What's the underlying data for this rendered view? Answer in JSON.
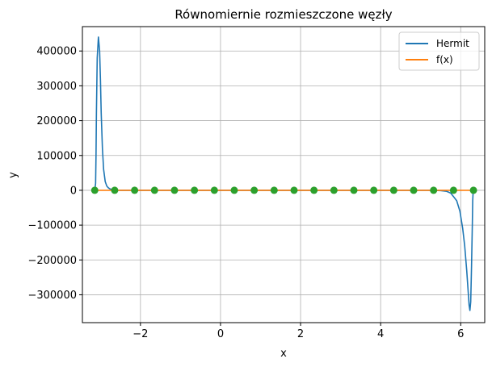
{
  "chart_data": {
    "type": "line",
    "title": "Równomiernie rozmieszczone węzły",
    "xlabel": "x",
    "ylabel": "y",
    "xlim": [
      -3.45,
      6.6
    ],
    "ylim": [
      -380000,
      470000
    ],
    "xticks": [
      -2,
      0,
      2,
      4,
      6
    ],
    "yticks": [
      -300000,
      -200000,
      -100000,
      0,
      100000,
      200000,
      300000,
      400000
    ],
    "xtick_labels": [
      "−2",
      "0",
      "2",
      "4",
      "6"
    ],
    "ytick_labels": [
      "−300000",
      "−200000",
      "−100000",
      "0",
      "100000",
      "200000",
      "300000",
      "400000"
    ],
    "grid": true,
    "legend_position": "top-right",
    "colors": {
      "hermit": "#1f77b4",
      "fx": "#ff7f0e",
      "nodes": "#2ca02c",
      "grid": "#b0b0b0"
    },
    "series": [
      {
        "name": "Hermit",
        "x": [
          -3.1416,
          -3.12,
          -3.11,
          -3.1,
          -3.08,
          -3.05,
          -3.02,
          -3.0,
          -2.98,
          -2.95,
          -2.92,
          -2.88,
          -2.84,
          -2.8,
          -2.76,
          -2.72,
          -2.68,
          -2.64,
          -2.6,
          -2.5,
          -2.3,
          -2.0,
          -1.5,
          -1.0,
          0.0,
          1.0,
          2.0,
          3.0,
          4.0,
          5.0,
          5.3,
          5.5,
          5.65,
          5.75,
          5.82,
          5.9,
          5.98,
          6.05,
          6.1,
          6.15,
          6.18,
          6.21,
          6.23,
          6.25,
          6.27,
          6.29,
          6.3,
          6.31,
          6.3186
        ],
        "y": [
          0,
          20000,
          100000,
          220000,
          380000,
          440000,
          400000,
          320000,
          220000,
          120000,
          60000,
          25000,
          12000,
          7000,
          4000,
          2500,
          1500,
          800,
          400,
          0,
          0,
          0,
          0,
          0,
          0,
          0,
          0,
          0,
          0,
          0,
          0,
          -1000,
          -3000,
          -8000,
          -18000,
          -30000,
          -60000,
          -110000,
          -160000,
          -230000,
          -280000,
          -330000,
          -345000,
          -320000,
          -220000,
          -100000,
          -30000,
          -5000,
          0
        ]
      },
      {
        "name": "f(x)",
        "x": [
          -3.1416,
          6.3186
        ],
        "y": [
          0,
          0
        ]
      },
      {
        "name": "",
        "type": "scatter",
        "x": [
          -3.1416,
          -2.6437,
          -2.1458,
          -1.6479,
          -1.15,
          -0.6521,
          -0.1542,
          0.3437,
          0.8416,
          1.3395,
          1.8374,
          2.3353,
          2.8332,
          3.3311,
          3.829,
          4.3269,
          4.8248,
          5.3227,
          5.8206,
          6.3186
        ],
        "y": [
          0,
          0,
          0,
          0,
          0,
          0,
          0,
          0,
          0,
          0,
          0,
          0,
          0,
          0,
          0,
          0,
          0,
          0,
          0,
          0
        ]
      }
    ]
  }
}
